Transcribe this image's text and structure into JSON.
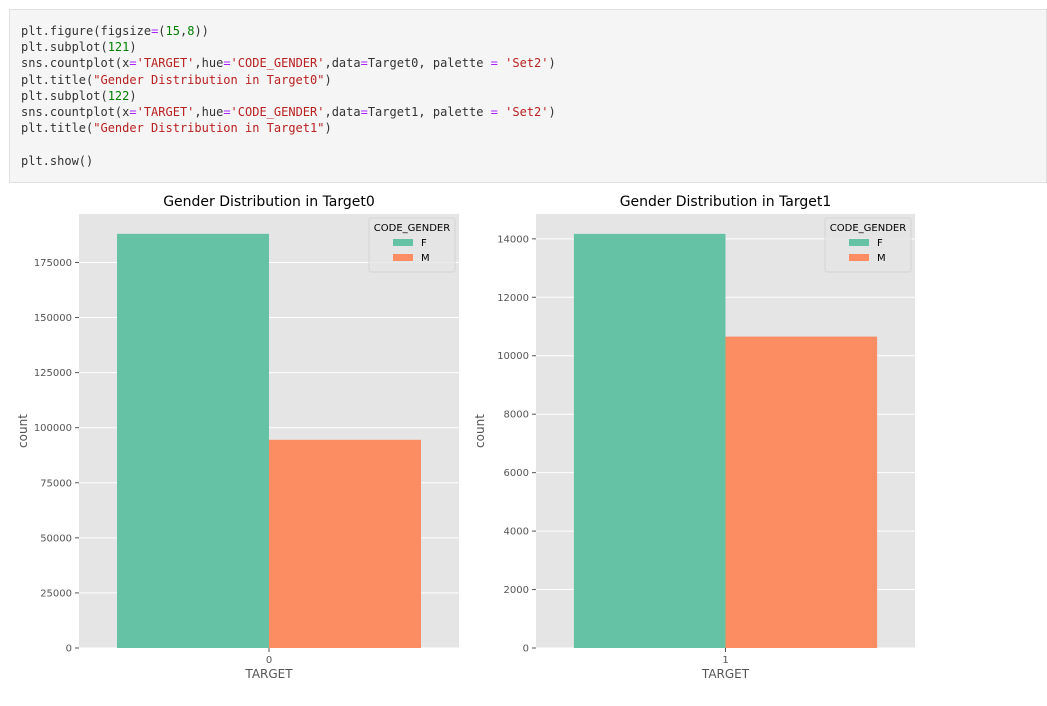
{
  "code": {
    "lines": [
      "plt.figure(figsize=(15,8))",
      "plt.subplot(121)",
      "sns.countplot(x='TARGET',hue='CODE_GENDER',data=Target0, palette = 'Set2')",
      "plt.title(\"Gender Distribution in Target0\")",
      "plt.subplot(122)",
      "sns.countplot(x='TARGET',hue='CODE_GENDER',data=Target1, palette = 'Set2')",
      "plt.title(\"Gender Distribution in Target1\")",
      "",
      "plt.show()"
    ]
  },
  "colors": {
    "F": "#66c2a5",
    "M": "#fc8d62",
    "plot_bg": "#e5e5e5",
    "grid": "#ffffff"
  },
  "chart_data": [
    {
      "type": "bar",
      "title": "Gender Distribution in Target0",
      "xlabel": "TARGET",
      "ylabel": "count",
      "categories": [
        "0"
      ],
      "series": [
        {
          "name": "F",
          "values": [
            188000
          ]
        },
        {
          "name": "M",
          "values": [
            94500
          ]
        }
      ],
      "ylim": [
        0,
        197000
      ],
      "yticks": [
        0,
        25000,
        50000,
        75000,
        100000,
        125000,
        150000,
        175000
      ],
      "legend_title": "CODE_GENDER",
      "legend_position": "top-right"
    },
    {
      "type": "bar",
      "title": "Gender Distribution in Target1",
      "xlabel": "TARGET",
      "ylabel": "count",
      "categories": [
        "1"
      ],
      "series": [
        {
          "name": "F",
          "values": [
            14170
          ]
        },
        {
          "name": "M",
          "values": [
            10655
          ]
        }
      ],
      "ylim": [
        0,
        14850
      ],
      "yticks": [
        0,
        2000,
        4000,
        6000,
        8000,
        10000,
        12000,
        14000
      ],
      "legend_title": "CODE_GENDER",
      "legend_position": "top-right"
    }
  ]
}
